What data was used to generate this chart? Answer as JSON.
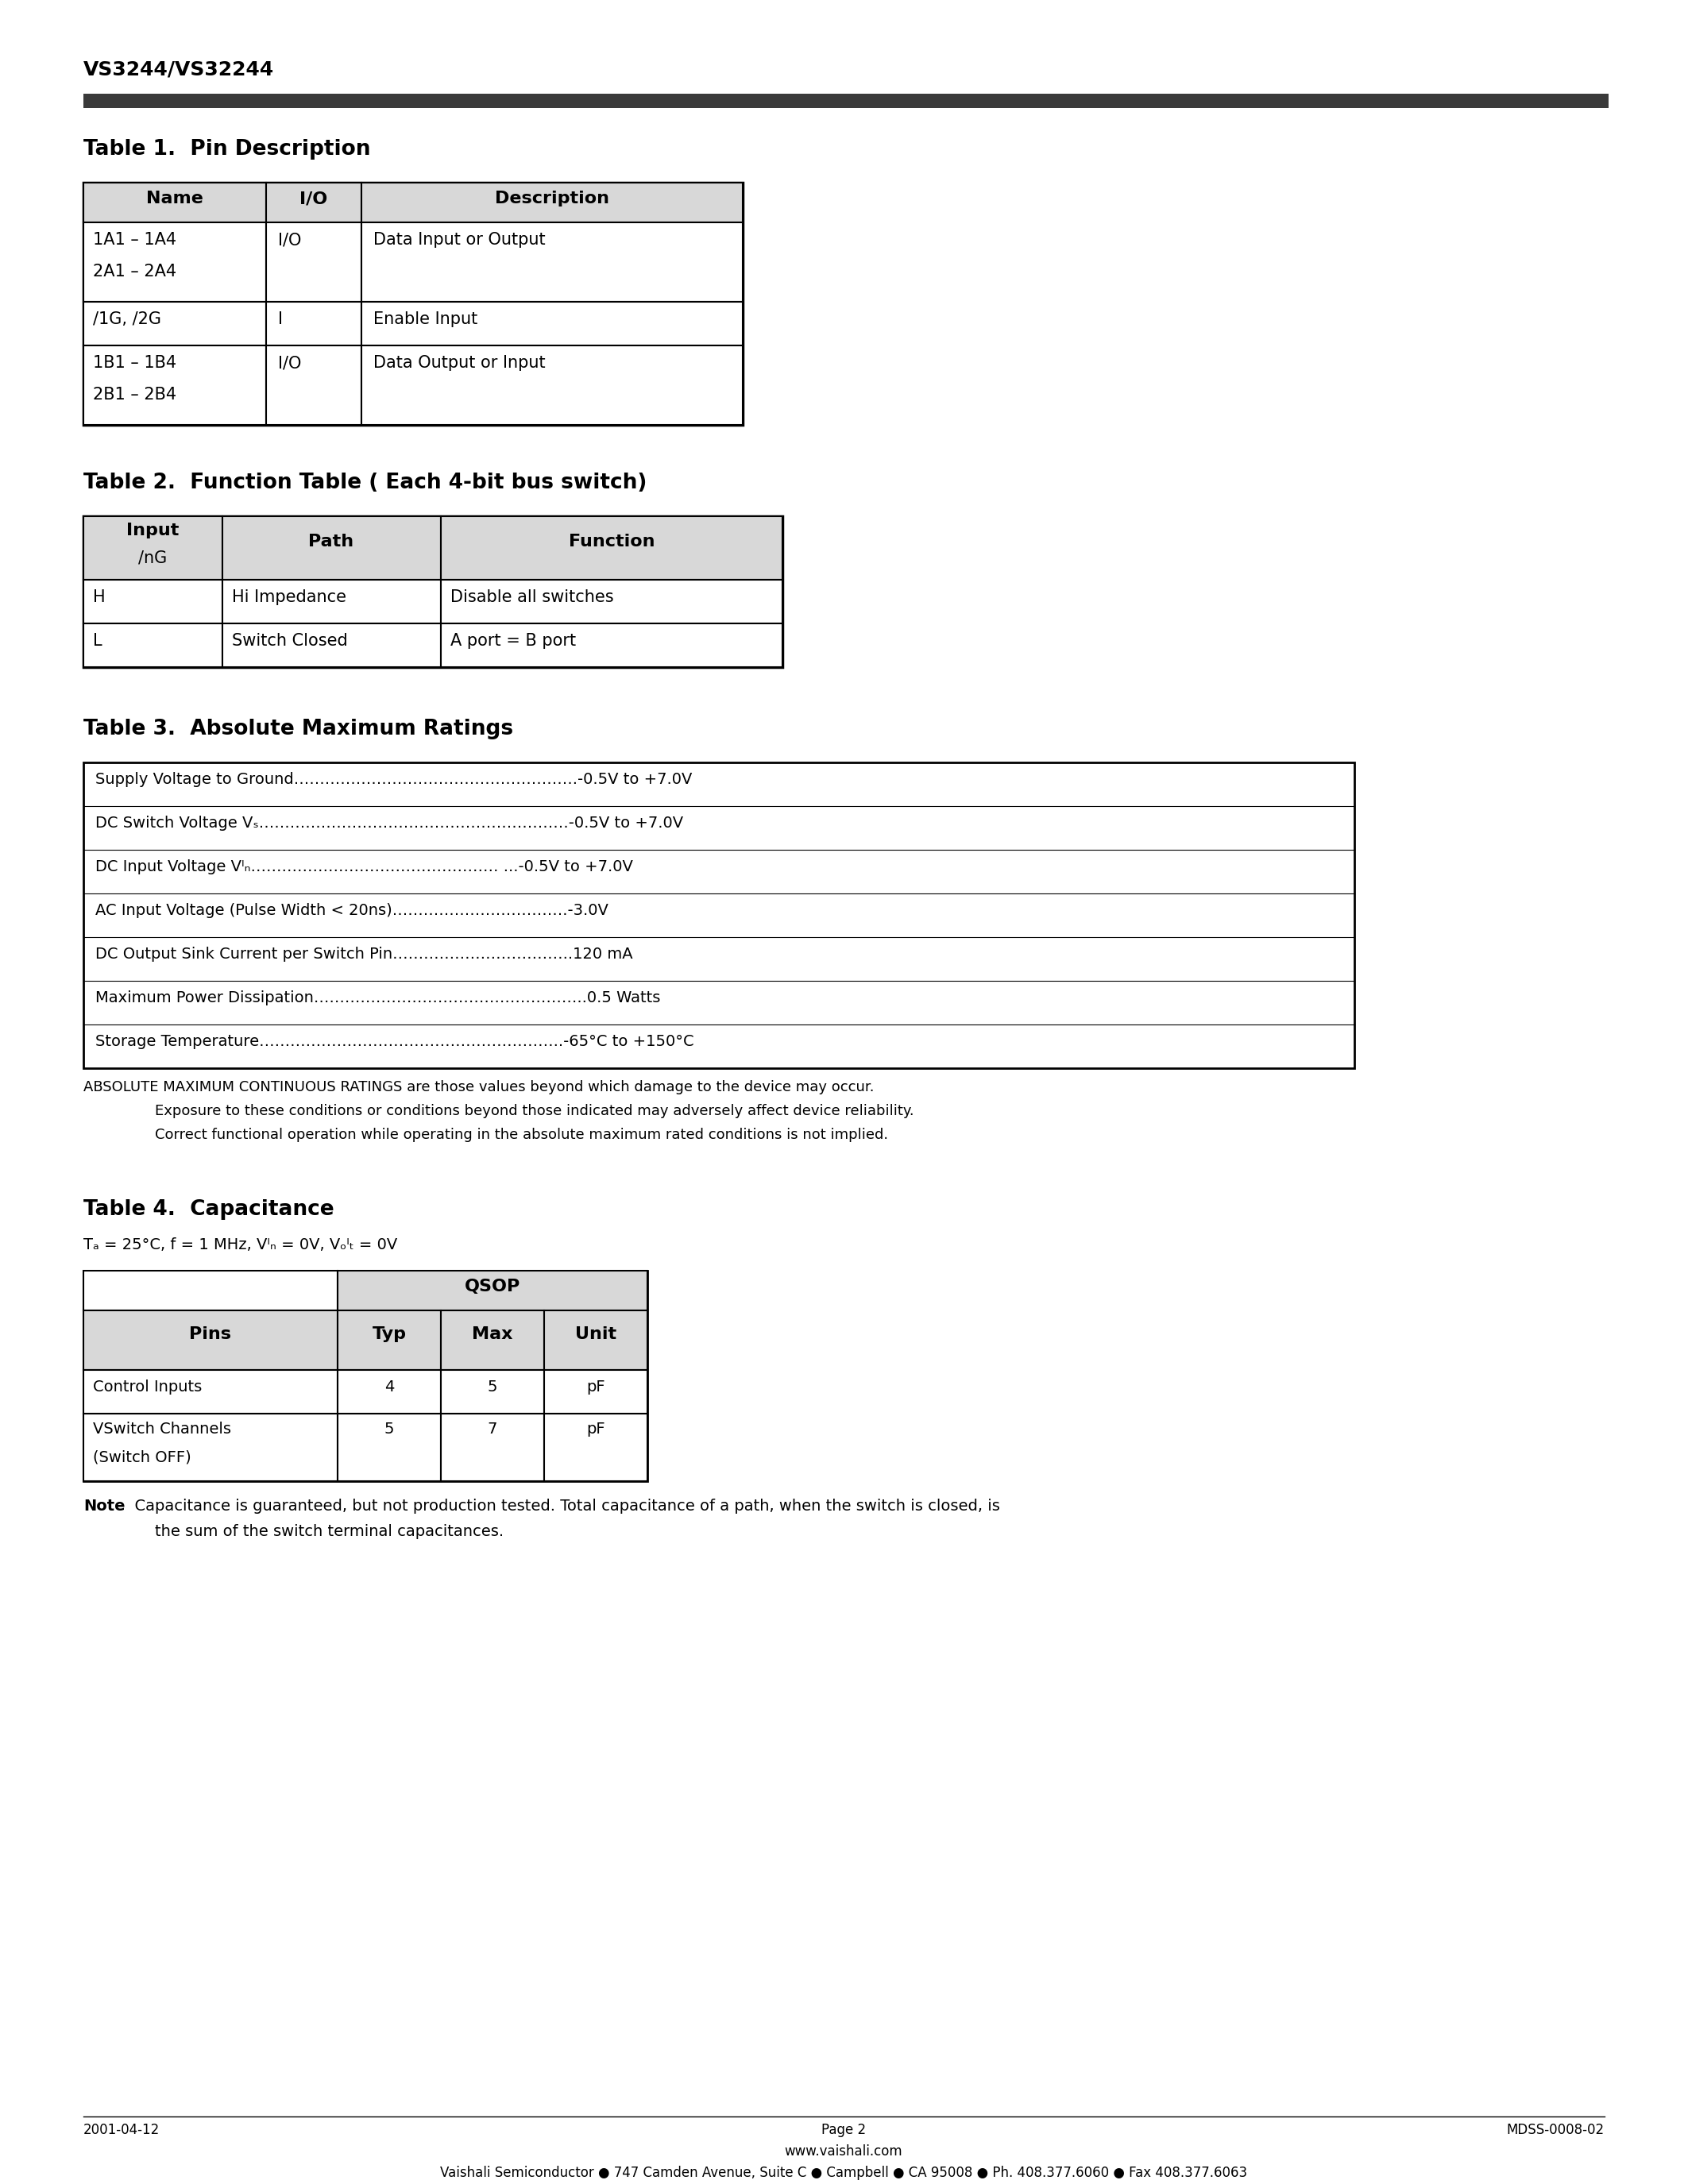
{
  "page_title": "VS3244/VS32244",
  "header_bar_color": "#3a3a3a",
  "bg_color": "#ffffff",
  "text_color": "#000000",
  "table1_title": "Table 1.  Pin Description",
  "table1_headers": [
    "Name",
    "I/O",
    "Description"
  ],
  "table1_col1_lines": [
    "1A1 – 1A4",
    "2A1 – 2A4"
  ],
  "table1_col2_r1": "I/O",
  "table1_col3_r1": "Data Input or Output",
  "table1_col1_r2": "/1G, /2G",
  "table1_col2_r2": "I",
  "table1_col3_r2": "Enable Input",
  "table1_col1_r3_lines": [
    "1B1 – 1B4",
    "2B1 – 2B4"
  ],
  "table1_col2_r3": "I/O",
  "table1_col3_r3": "Data Output or Input",
  "table2_title": "Table 2.  Function Table ( Each 4-bit bus switch)",
  "table2_hdr_input": "Input",
  "table2_hdr_nG": "/nG",
  "table2_hdr_path": "Path",
  "table2_hdr_func": "Function",
  "table2_rows": [
    [
      "H",
      "Hi Impedance",
      "Disable all switches"
    ],
    [
      "L",
      "Switch Closed",
      "A port = B port"
    ]
  ],
  "table3_title": "Table 3.  Absolute Maximum Ratings",
  "table3_rows": [
    "Supply Voltage to Ground……………………………………………….-0.5V to +7.0V",
    "DC Switch Voltage Vₛ……………………………………………………-0.5V to +7.0V",
    "DC Input Voltage Vᴵₙ………………………………………… ...-0.5V to +7.0V",
    "AC Input Voltage (Pulse Width < 20ns)…………………………….-3.0V",
    "DC Output Sink Current per Switch Pin……………………………..120 mA",
    "Maximum Power Dissipation……………………………………………..0.5 Watts",
    "Storage Temperature…………………………………………………..-65°C to +150°C"
  ],
  "table3_note_line1": "ABSOLUTE MAXIMUM CONTINUOUS RATINGS are those values beyond which damage to the device may occur.",
  "table3_note_line2": "Exposure to these conditions or conditions beyond those indicated may adversely affect device reliability.",
  "table3_note_line3": "Correct functional operation while operating in the absolute maximum rated conditions is not implied.",
  "table4_title": "Table 4.  Capacitance",
  "table4_condition": "Tₐ = 25°C, f = 1 MHz, Vᴵₙ = 0V, Vₒᴵₜ = 0V",
  "table4_subheader": "QSOP",
  "table4_headers": [
    "Pins",
    "Typ",
    "Max",
    "Unit"
  ],
  "table4_rows": [
    [
      "Control Inputs",
      "4",
      "5",
      "pF"
    ],
    [
      "VSwitch Channels",
      "5",
      "7",
      "pF"
    ],
    [
      "(Switch OFF)",
      "",
      "",
      ""
    ]
  ],
  "table4_note_bold": "Note",
  "table4_note_text": "  Capacitance is guaranteed, but not production tested. Total capacitance of a path, when the switch is closed, is",
  "table4_note_text2": "the sum of the switch terminal capacitances.",
  "footer_left": "2001-04-12",
  "footer_center": "Page 2",
  "footer_center2": "www.vaishali.com",
  "footer_right": "MDSS-0008-02",
  "footer_bottom": "Vaishali Semiconductor ● 747 Camden Avenue, Suite C ● Campbell ● CA 95008 ● Ph. 408.377.6060 ● Fax 408.377.6063"
}
